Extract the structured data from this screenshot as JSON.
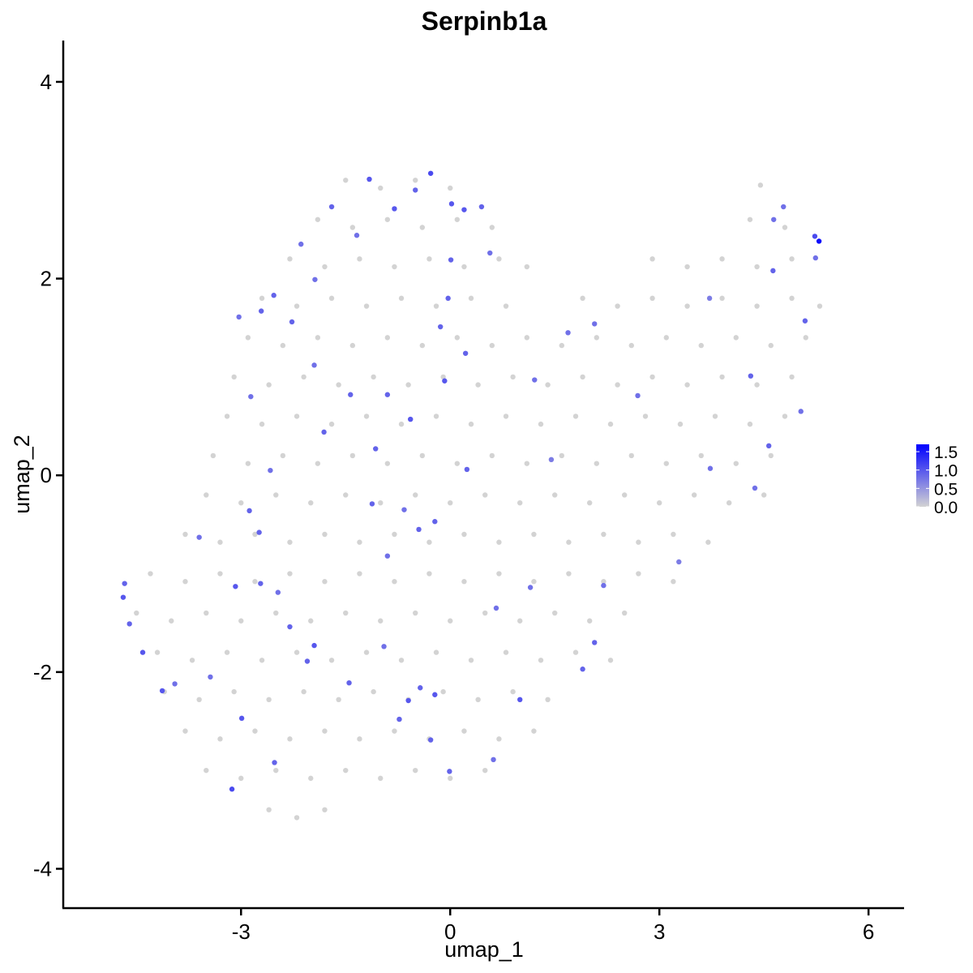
{
  "chart_data": {
    "type": "scatter",
    "title": "Serpinb1a",
    "xlabel": "umap_1",
    "ylabel": "umap_2",
    "xlim": [
      -5.55,
      6.51
    ],
    "ylim": [
      -4.4,
      4.42
    ],
    "xticks": [
      -3,
      0,
      3,
      6
    ],
    "yticks": [
      -4,
      -2,
      0,
      2,
      4
    ],
    "low_color": "#d3d3d3",
    "high_color": "#0000ff",
    "clim": [
      0,
      1.7
    ],
    "cticks": [
      {
        "value": 0,
        "label": "0.0"
      },
      {
        "value": 0.5,
        "label": "0.5"
      },
      {
        "value": 1.0,
        "label": "1.0"
      },
      {
        "value": 1.5,
        "label": "1.5"
      }
    ],
    "x": [
      -1.5,
      -1.0,
      -0.5,
      0.0,
      4.45,
      -1.9,
      -1.4,
      -0.9,
      -0.4,
      0.1,
      0.6,
      4.3,
      4.8,
      -2.3,
      -1.8,
      -1.3,
      -0.8,
      -0.3,
      0.2,
      0.7,
      1.1,
      2.9,
      3.4,
      3.9,
      4.4,
      4.9,
      -2.7,
      -2.2,
      -1.7,
      -1.2,
      -0.7,
      -0.2,
      0.3,
      0.8,
      1.9,
      2.4,
      2.9,
      3.4,
      3.9,
      4.4,
      4.9,
      5.3,
      -2.9,
      -2.4,
      -1.9,
      -1.4,
      -0.9,
      -0.4,
      0.1,
      0.6,
      1.1,
      1.6,
      2.1,
      2.6,
      3.1,
      3.6,
      4.1,
      4.6,
      5.1,
      -3.1,
      -2.6,
      -2.1,
      -1.6,
      -1.1,
      -0.6,
      -0.1,
      0.4,
      0.9,
      1.4,
      1.9,
      2.4,
      2.9,
      3.4,
      3.9,
      4.4,
      4.9,
      -3.2,
      -2.7,
      -2.2,
      -1.7,
      -1.2,
      -0.7,
      -0.2,
      0.3,
      0.8,
      1.3,
      1.8,
      2.3,
      2.8,
      3.3,
      3.8,
      4.3,
      4.8,
      -3.4,
      -2.9,
      -2.4,
      -1.9,
      -1.4,
      -0.9,
      -0.4,
      0.1,
      0.6,
      1.1,
      1.6,
      2.1,
      2.6,
      3.1,
      3.6,
      4.1,
      4.6,
      -3.5,
      -3.0,
      -2.5,
      -2.0,
      -1.5,
      -1.0,
      -0.5,
      0.0,
      0.5,
      1.0,
      1.5,
      2.0,
      2.5,
      3.0,
      3.5,
      4.0,
      4.5,
      -3.8,
      -3.3,
      -2.8,
      -2.3,
      -1.8,
      -1.3,
      -0.8,
      -0.3,
      0.2,
      0.7,
      1.2,
      1.7,
      2.2,
      2.7,
      3.2,
      3.7,
      -4.3,
      -3.8,
      -3.3,
      -2.8,
      -2.3,
      -1.8,
      -1.3,
      -0.8,
      -0.3,
      0.2,
      0.7,
      1.2,
      1.7,
      2.2,
      2.7,
      3.2,
      -4.5,
      -4.0,
      -3.5,
      -3.0,
      -2.5,
      -2.0,
      -1.5,
      -1.0,
      -0.5,
      0.0,
      0.5,
      1.0,
      1.5,
      2.0,
      2.5,
      -4.2,
      -3.7,
      -3.2,
      -2.7,
      -2.2,
      -1.7,
      -1.2,
      -0.7,
      -0.2,
      0.3,
      0.8,
      1.3,
      1.8,
      2.3,
      -4.1,
      -3.6,
      -3.1,
      -2.6,
      -2.1,
      -1.6,
      -1.1,
      -0.6,
      -0.1,
      0.4,
      0.9,
      1.4,
      -3.8,
      -3.3,
      -2.8,
      -2.3,
      -1.8,
      -1.3,
      -0.8,
      -0.3,
      0.2,
      0.7,
      1.2,
      -3.5,
      -3.0,
      -2.5,
      -2.0,
      -1.5,
      -1.0,
      -0.5,
      0.0,
      0.5,
      -2.6,
      -2.2,
      -1.8,
      5.29,
      5.23,
      4.78,
      4.64,
      4.63,
      5.24,
      5.09,
      5.03,
      4.57,
      4.37,
      4.31,
      3.72,
      3.73,
      3.28,
      2.69,
      2.07,
      1.69,
      1.21,
      1.45,
      1.15,
      1.0,
      2.07,
      1.9,
      2.2,
      0.66,
      0.62,
      -0.01,
      -0.22,
      -0.28,
      -0.43,
      -0.6,
      -0.73,
      -0.95,
      -1.45,
      -1.95,
      -2.05,
      -2.3,
      -2.47,
      -2.72,
      -3.08,
      -2.99,
      -3.13,
      -2.52,
      -3.44,
      -3.95,
      -4.13,
      -4.41,
      -4.6,
      -4.69,
      -4.67,
      -3.6,
      -2.88,
      -2.74,
      -2.58,
      -2.86,
      -2.71,
      -3.03,
      -2.53,
      -2.14,
      -2.27,
      -1.95,
      -1.81,
      -1.43,
      -1.07,
      -0.9,
      -0.57,
      -0.08,
      -0.03,
      0.01,
      -0.14,
      0.22,
      0.24,
      -0.45,
      -0.66,
      -0.22,
      -1.12,
      -0.8,
      -0.28,
      -1.16,
      -1.7,
      -0.5,
      0.02,
      0.2,
      0.45,
      0.57,
      -1.34,
      -1.94,
      -0.9
    ],
    "values": [
      3.0,
      2.92,
      3.0,
      2.92,
      2.95,
      2.6,
      2.52,
      2.6,
      2.52,
      2.6,
      2.52,
      2.6,
      2.52,
      2.2,
      2.12,
      2.2,
      2.12,
      2.2,
      2.12,
      2.2,
      2.12,
      2.2,
      2.12,
      2.2,
      2.12,
      2.2,
      1.8,
      1.72,
      1.8,
      1.72,
      1.8,
      1.72,
      1.8,
      1.72,
      1.8,
      1.72,
      1.8,
      1.72,
      1.8,
      1.72,
      1.8,
      1.72,
      1.4,
      1.32,
      1.4,
      1.32,
      1.4,
      1.32,
      1.4,
      1.32,
      1.4,
      1.32,
      1.4,
      1.32,
      1.4,
      1.32,
      1.4,
      1.32,
      1.4,
      1.0,
      0.92,
      1.0,
      0.92,
      1.0,
      0.92,
      1.0,
      0.92,
      1.0,
      0.92,
      1.0,
      0.92,
      1.0,
      0.92,
      1.0,
      0.92,
      1.0,
      0.6,
      0.52,
      0.6,
      0.52,
      0.6,
      0.52,
      0.6,
      0.52,
      0.6,
      0.52,
      0.6,
      0.52,
      0.6,
      0.52,
      0.6,
      0.52,
      0.6,
      0.2,
      0.12,
      0.2,
      0.12,
      0.2,
      0.12,
      0.2,
      0.12,
      0.2,
      0.12,
      0.2,
      0.12,
      0.2,
      0.12,
      0.2,
      0.12,
      0.2,
      -0.2,
      -0.28,
      -0.2,
      -0.28,
      -0.2,
      -0.28,
      -0.2,
      -0.28,
      -0.2,
      -0.28,
      -0.2,
      -0.28,
      -0.2,
      -0.28,
      -0.2,
      -0.28,
      -0.2,
      -0.6,
      -0.68,
      -0.6,
      -0.68,
      -0.6,
      -0.68,
      -0.6,
      -0.68,
      -0.6,
      -0.68,
      -0.6,
      -0.68,
      -0.6,
      -0.68,
      -0.6,
      -0.68,
      -1.0,
      -1.08,
      -1.0,
      -1.08,
      -1.0,
      -1.08,
      -1.0,
      -1.08,
      -1.0,
      -1.08,
      -1.0,
      -1.08,
      -1.0,
      -1.08,
      -1.0,
      -1.08,
      -1.4,
      -1.48,
      -1.4,
      -1.48,
      -1.4,
      -1.48,
      -1.4,
      -1.48,
      -1.4,
      -1.48,
      -1.4,
      -1.48,
      -1.4,
      -1.48,
      -1.4,
      -1.8,
      -1.88,
      -1.8,
      -1.88,
      -1.8,
      -1.88,
      -1.8,
      -1.88,
      -1.8,
      -1.88,
      -1.8,
      -1.88,
      -1.8,
      -1.88,
      -2.2,
      -2.28,
      -2.2,
      -2.28,
      -2.2,
      -2.28,
      -2.2,
      -2.28,
      -2.2,
      -2.28,
      -2.2,
      -2.28,
      -2.6,
      -2.68,
      -2.6,
      -2.68,
      -2.6,
      -2.68,
      -2.6,
      -2.68,
      -2.6,
      -2.68,
      -2.6,
      -3.0,
      -3.08,
      -3.0,
      -3.08,
      -3.0,
      -3.08,
      -3.0,
      -3.08,
      -3.0,
      -3.4,
      -3.48,
      -3.4,
      2.38,
      2.43,
      2.73,
      2.6,
      2.08,
      2.21,
      1.57,
      0.65,
      0.3,
      -0.13,
      1.01,
      1.8,
      0.07,
      -0.88,
      0.81,
      1.54,
      1.45,
      0.97,
      0.16,
      -1.14,
      -2.28,
      -1.7,
      -1.97,
      -1.12,
      -1.35,
      -2.89,
      -3.01,
      -2.23,
      -2.69,
      -2.16,
      -2.29,
      -2.48,
      -1.74,
      -2.11,
      -1.73,
      -1.89,
      -1.54,
      -1.19,
      -1.1,
      -1.13,
      -2.47,
      -3.19,
      -2.92,
      -2.05,
      -2.12,
      -2.19,
      -1.8,
      -1.51,
      -1.24,
      -1.1,
      -0.63,
      -0.36,
      -0.58,
      0.05,
      0.8,
      1.67,
      1.61,
      1.83,
      2.35,
      1.56,
      1.12,
      0.44,
      0.82,
      0.27,
      0.82,
      0.57,
      0.96,
      1.8,
      2.19,
      1.51,
      1.24,
      0.06,
      -0.55,
      -0.35,
      -0.47,
      -0.29,
      2.71,
      3.07,
      3.01,
      2.73,
      2.9,
      2.76,
      2.7,
      2.73,
      2.26,
      2.44,
      1.99,
      -0.82
    ],
    "expression": [
      0,
      0,
      0,
      0,
      0,
      0,
      0,
      0,
      0,
      0,
      0,
      0,
      0,
      0,
      0,
      0,
      0,
      0,
      0,
      0,
      0,
      0,
      0,
      0,
      0,
      0,
      0,
      0,
      0,
      0,
      0,
      0,
      0,
      0,
      0,
      0,
      0,
      0,
      0,
      0,
      0,
      0,
      0,
      0,
      0,
      0,
      0,
      0,
      0,
      0,
      0,
      0,
      0,
      0,
      0,
      0,
      0,
      0,
      0,
      0,
      0,
      0,
      0,
      0,
      0,
      0,
      0,
      0,
      0,
      0,
      0,
      0,
      0,
      0,
      0,
      0,
      0,
      0,
      0,
      0,
      0,
      0,
      0,
      0,
      0,
      0,
      0,
      0,
      0,
      0,
      0,
      0,
      0,
      0,
      0,
      0,
      0,
      0,
      0,
      0,
      0,
      0,
      0,
      0,
      0,
      0,
      0,
      0,
      0,
      0,
      0,
      0,
      0,
      0,
      0,
      0,
      0,
      0,
      0,
      0,
      0,
      0,
      0,
      0,
      0,
      0,
      0,
      0,
      0,
      0,
      0,
      0,
      0,
      0,
      0,
      0,
      0,
      0,
      0,
      0,
      0,
      0,
      0,
      0,
      0,
      0,
      0,
      0,
      0,
      0,
      0,
      0,
      0,
      0,
      0,
      0,
      0,
      0,
      0,
      0,
      0,
      0,
      0,
      0,
      0,
      0,
      0,
      0,
      0,
      0,
      0,
      0,
      0,
      0,
      0,
      0,
      0,
      0,
      0,
      0,
      0,
      0,
      0,
      0,
      0,
      0,
      0,
      0,
      0,
      0,
      0,
      0,
      0,
      0,
      0,
      0,
      0,
      0,
      0,
      0,
      0,
      0,
      0,
      0,
      0,
      0,
      0,
      0,
      0,
      0,
      0,
      0,
      0,
      0,
      0,
      0,
      0,
      0,
      0,
      0,
      0,
      0,
      0,
      1.6,
      1.1,
      0.8,
      0.8,
      0.9,
      0.8,
      0.9,
      0.8,
      0.9,
      0.8,
      0.9,
      0.7,
      0.8,
      0.7,
      0.8,
      0.8,
      0.8,
      0.8,
      0.7,
      0.8,
      1.0,
      0.9,
      0.9,
      0.8,
      0.8,
      0.8,
      0.9,
      1.0,
      0.9,
      0.9,
      1.0,
      0.9,
      0.8,
      0.9,
      1.0,
      0.9,
      0.9,
      0.8,
      0.9,
      1.0,
      1.0,
      1.1,
      0.9,
      0.8,
      0.8,
      1.0,
      1.0,
      0.9,
      1.0,
      0.9,
      0.8,
      0.9,
      0.9,
      0.8,
      0.8,
      0.9,
      0.8,
      0.9,
      0.8,
      0.9,
      0.8,
      0.9,
      0.9,
      0.9,
      0.9,
      1.0,
      1.0,
      0.9,
      0.9,
      0.9,
      0.9,
      0.9,
      0.9,
      0.8,
      0.9,
      0.9,
      1.0,
      1.1,
      1.0,
      0.9,
      0.9,
      1.0,
      1.0,
      0.9,
      0.8,
      0.8,
      0.8,
      0.8
    ]
  }
}
